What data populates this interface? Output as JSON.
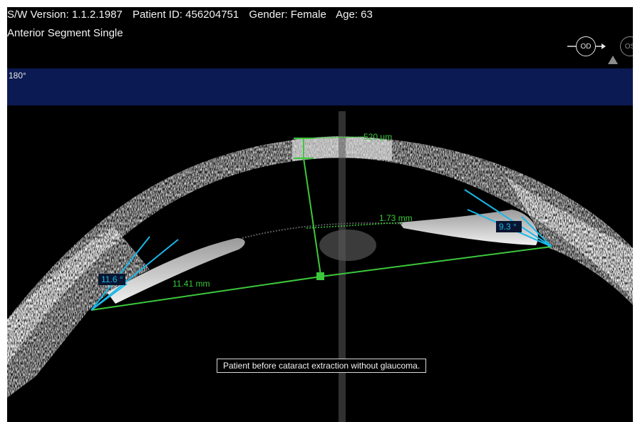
{
  "header": {
    "sw_version": "S/W Version: 1.1.2.1987",
    "patient_id": "Patient ID: 456204751",
    "gender": "Gender: Female",
    "age": "Age: 63",
    "scan_mode": "Anterior Segment Single"
  },
  "angle_band": {
    "label": "180°"
  },
  "eye_selector": {
    "od_label": "OD",
    "os_label": "OS",
    "selected": "OD"
  },
  "measurements": {
    "corneal_thickness": "520 µm",
    "lens_chord": "1.73 mm",
    "angle_left": "11.6 °",
    "angle_right": "9.3 °",
    "angle_to_angle": "11.41 mm"
  },
  "caption": "Patient before cataract extraction without glaucoma.",
  "colors": {
    "measurement_green": "#3cc83c",
    "angle_cyan": "#1ab8e8",
    "band_blue": "#0b1a52"
  }
}
